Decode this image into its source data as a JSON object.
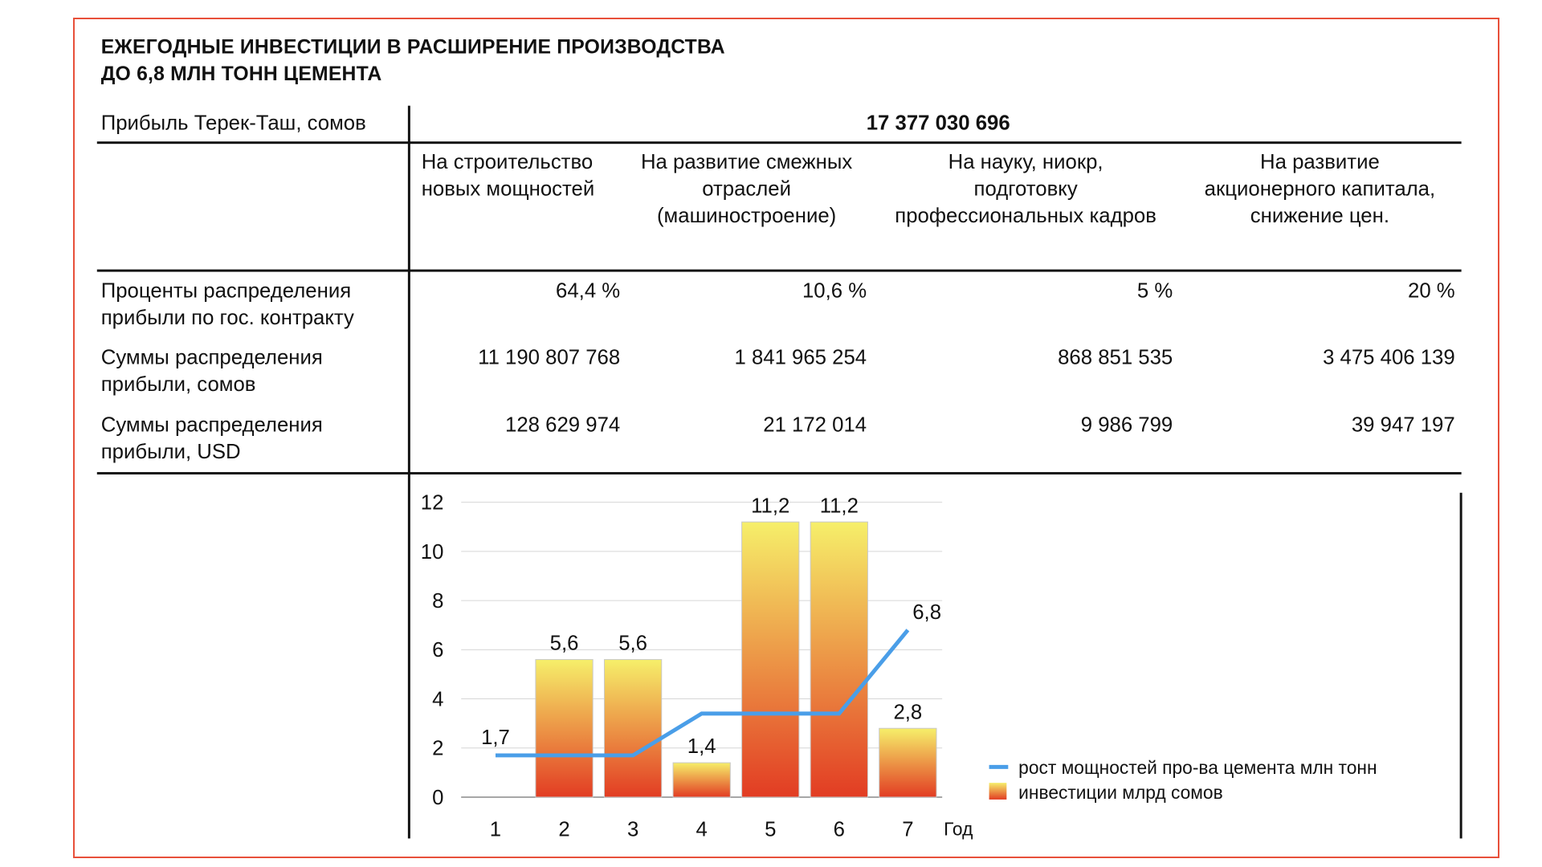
{
  "title": {
    "line1": "ЕЖЕГОДНЫЕ ИНВЕСТИЦИИ В РАСШИРЕНИЕ ПРОИЗВОДСТВА",
    "line2": "ДО 6,8 МЛН ТОНН ЦЕМЕНТА"
  },
  "table": {
    "profit_label": "Прибыль Терек-Таш, сомов",
    "profit_value": "17 377 030 696",
    "columns": [
      {
        "lines": [
          "На строительство",
          "новых мощностей"
        ]
      },
      {
        "lines": [
          "На развитие смежных",
          "отраслей",
          "(машиностроение)"
        ]
      },
      {
        "lines": [
          "На науку, ниокр,",
          "подготовку",
          "профессиональных кадров"
        ]
      },
      {
        "lines": [
          "На развитие",
          "акционерного капитала,",
          "снижение цен."
        ]
      }
    ],
    "rows": [
      {
        "label": [
          "Проценты распределения",
          "прибыли по гос. контракту"
        ],
        "values": [
          "64,4 %",
          "10,6 %",
          "5 %",
          "20 %"
        ]
      },
      {
        "label": [
          "Суммы распределения",
          "прибыли, сомов"
        ],
        "values": [
          "11 190 807 768",
          "1 841 965 254",
          "868 851 535",
          "3 475 406 139"
        ]
      },
      {
        "label": [
          "Суммы распределения",
          "прибыли, USD"
        ],
        "values": [
          "128 629 974",
          "21 172 014",
          "9 986 799",
          "39 947 197"
        ]
      }
    ]
  },
  "colors": {
    "frame": "#e8503a",
    "bar_top": "#f6ef6a",
    "bar_bottom": "#e23c23",
    "line": "#4a9ee8"
  },
  "chart_data": {
    "type": "bar",
    "categories": [
      "1",
      "2",
      "3",
      "4",
      "5",
      "6",
      "7"
    ],
    "xlabel": "Год",
    "ylim": [
      0,
      12
    ],
    "yticks": [
      0,
      2,
      4,
      6,
      8,
      10,
      12
    ],
    "grid": true,
    "legend_position": "bottom-right",
    "series": [
      {
        "name": "инвестиции млрд сомов",
        "kind": "bar",
        "values": [
          null,
          5.6,
          5.6,
          1.4,
          11.2,
          11.2,
          2.8
        ],
        "labels": [
          "",
          "5,6",
          "5,6",
          "1,4",
          "11,2",
          "11,2",
          "2,8"
        ]
      },
      {
        "name": "рост мощностей про-ва цемента млн тонн",
        "kind": "line",
        "values": [
          1.7,
          1.7,
          1.7,
          3.4,
          3.4,
          3.4,
          6.8
        ],
        "labels": [
          "1,7",
          "",
          "",
          "",
          "",
          "",
          "6,8"
        ]
      }
    ]
  }
}
